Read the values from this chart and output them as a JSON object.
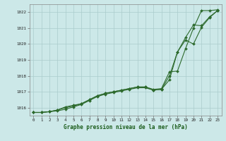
{
  "background_color": "#cce8e8",
  "grid_color": "#aacccc",
  "line_color": "#2d6a2d",
  "xlabel": "Graphe pression niveau de la mer (hPa)",
  "ylim": [
    1015.5,
    1022.5
  ],
  "xlim": [
    -0.5,
    23.5
  ],
  "yticks": [
    1016,
    1017,
    1018,
    1019,
    1020,
    1021,
    1022
  ],
  "xticks": [
    0,
    1,
    2,
    3,
    4,
    5,
    6,
    7,
    8,
    9,
    10,
    11,
    12,
    13,
    14,
    15,
    16,
    17,
    18,
    19,
    20,
    21,
    22,
    23
  ],
  "series1": [
    1015.7,
    1015.7,
    1015.75,
    1015.8,
    1015.9,
    1016.05,
    1016.2,
    1016.45,
    1016.7,
    1016.85,
    1016.95,
    1017.05,
    1017.15,
    1017.25,
    1017.25,
    1017.1,
    1017.15,
    1017.75,
    1019.5,
    1020.25,
    1020.0,
    1021.05,
    1021.65,
    1022.1
  ],
  "series2": [
    1015.7,
    1015.7,
    1015.75,
    1015.85,
    1016.05,
    1016.15,
    1016.25,
    1016.5,
    1016.75,
    1016.9,
    1017.0,
    1017.1,
    1017.2,
    1017.3,
    1017.3,
    1017.15,
    1017.2,
    1018.25,
    1018.3,
    1019.7,
    1021.0,
    1022.1,
    1022.1,
    1022.15
  ],
  "series3": [
    1015.7,
    1015.7,
    1015.75,
    1015.85,
    1016.0,
    1016.1,
    1016.25,
    1016.5,
    1016.75,
    1016.9,
    1017.0,
    1017.1,
    1017.2,
    1017.3,
    1017.3,
    1017.1,
    1017.15,
    1018.0,
    1019.5,
    1020.4,
    1021.2,
    1021.15,
    1021.7,
    1022.1
  ]
}
